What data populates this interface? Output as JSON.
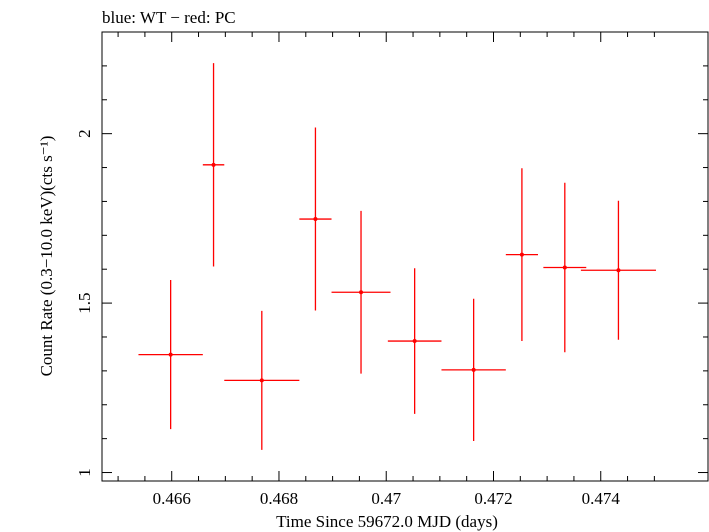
{
  "chart_data": {
    "type": "scatter",
    "title": "blue: WT − red: PC",
    "xlabel": "Time Since 59672.0 MJD (days)",
    "ylabel": "Count Rate (0.3−10.0 keV)(cts s⁻¹)",
    "xlim": [
      0.4647,
      0.476
    ],
    "ylim": [
      0.975,
      2.3
    ],
    "x_ticks": [
      {
        "value": 0.466,
        "label": "0.466"
      },
      {
        "value": 0.468,
        "label": "0.468"
      },
      {
        "value": 0.47,
        "label": "0.47"
      },
      {
        "value": 0.472,
        "label": "0.472"
      },
      {
        "value": 0.474,
        "label": "0.474"
      }
    ],
    "y_ticks": [
      {
        "value": 1,
        "label": "1"
      },
      {
        "value": 1.5,
        "label": "1.5"
      },
      {
        "value": 2,
        "label": "2"
      }
    ],
    "series": [
      {
        "color": "#ff0000",
        "points": [
          {
            "x": 0.46598,
            "xerr": 0.0006,
            "y": 1.348,
            "yerr": 0.22
          },
          {
            "x": 0.46678,
            "xerr": 0.0002,
            "y": 1.908,
            "yerr": 0.3
          },
          {
            "x": 0.46768,
            "xerr": 0.0007,
            "y": 1.272,
            "yerr": 0.205
          },
          {
            "x": 0.46868,
            "xerr": 0.0003,
            "y": 1.748,
            "yerr": 0.27
          },
          {
            "x": 0.46953,
            "xerr": 0.00055,
            "y": 1.532,
            "yerr": 0.24
          },
          {
            "x": 0.47053,
            "xerr": 0.0005,
            "y": 1.388,
            "yerr": 0.215
          },
          {
            "x": 0.47163,
            "xerr": 0.0006,
            "y": 1.303,
            "yerr": 0.21
          },
          {
            "x": 0.47253,
            "xerr": 0.0003,
            "y": 1.643,
            "yerr": 0.255
          },
          {
            "x": 0.47333,
            "xerr": 0.0004,
            "y": 1.605,
            "yerr": 0.25
          },
          {
            "x": 0.47433,
            "xerr": 0.0007,
            "y": 1.597,
            "yerr": 0.205
          }
        ]
      }
    ]
  }
}
